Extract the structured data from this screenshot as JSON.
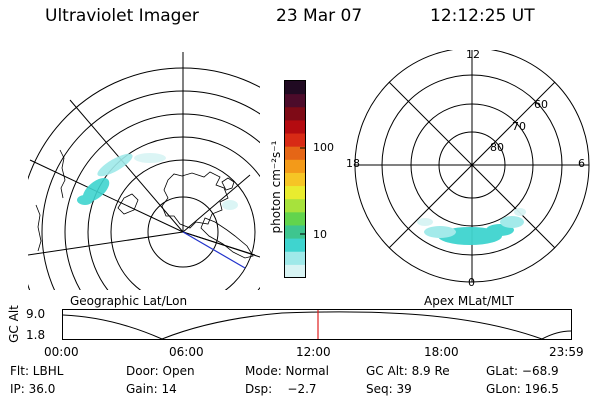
{
  "header": {
    "title": "Ultraviolet Imager",
    "date": "23 Mar 07",
    "time": "12:12:25 UT"
  },
  "colorbar": {
    "label": "photon cm⁻²s⁻¹",
    "tick_100": "100",
    "tick_10": "10",
    "colors": [
      "#d8f4f4",
      "#9fe9e9",
      "#3fd4cf",
      "#3ec58f",
      "#62d44d",
      "#a7e23c",
      "#e9ec2f",
      "#f6c525",
      "#f39a19",
      "#e56616",
      "#d82a15",
      "#b40b10",
      "#7e0a16",
      "#4c0b2a",
      "#200a22"
    ]
  },
  "geo_panel": {
    "label": "Geographic Lat/Lon"
  },
  "apex_panel": {
    "label": "Apex MLat/MLT",
    "mlt_top": "12",
    "mlt_bottom": "0",
    "mlt_left": "18",
    "mlt_right": "6",
    "lat_60": "60",
    "lat_70": "70",
    "lat_80": "80"
  },
  "orbit": {
    "ylabel": "GC Alt",
    "y_top": "9.0",
    "y_bottom": "1.8",
    "x_labels": [
      "00:00",
      "06:00",
      "12:00",
      "18:00",
      "23:59"
    ],
    "current_time_marker": "12:12"
  },
  "info": {
    "flt": "Flt: LBHL",
    "door": "Door: Open",
    "mode": "Mode: Normal",
    "gcalt": "GC Alt: 8.9 Re",
    "glat": "GLat: −68.9",
    "ip": "IP: 36.0",
    "gain": "Gain: 14",
    "dsp": "Dsp:    −2.7",
    "seq": "Seq: 39",
    "glon": "GLon: 196.5"
  }
}
